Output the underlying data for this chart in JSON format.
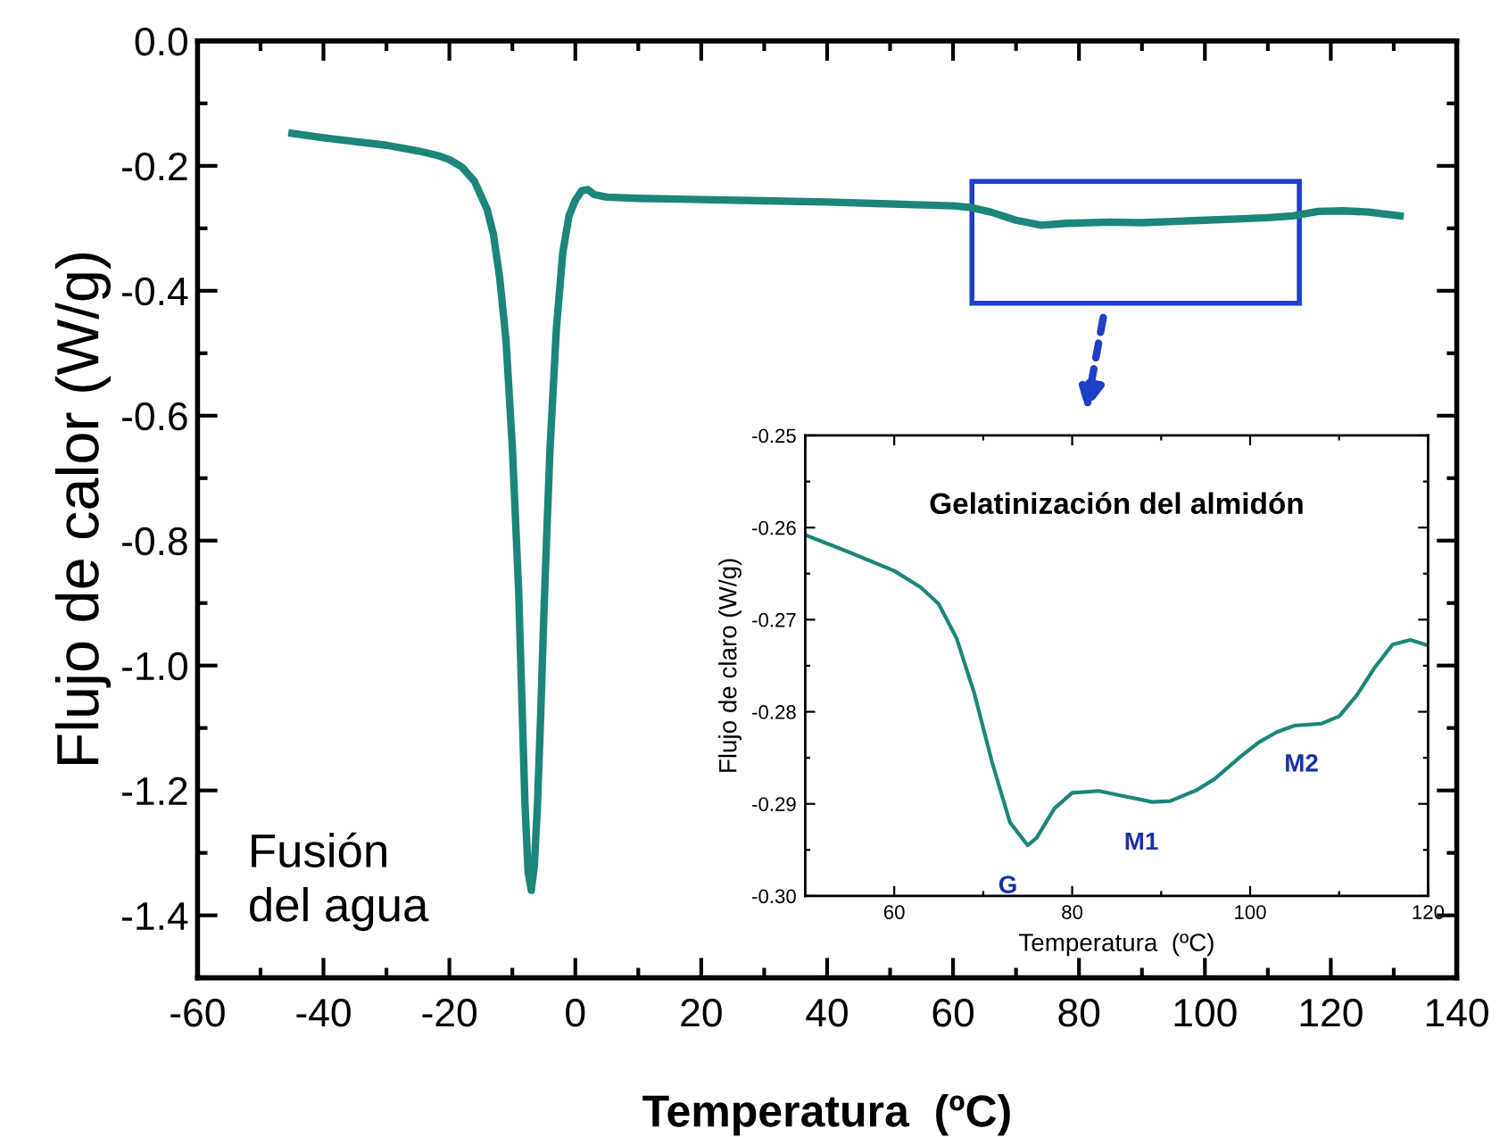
{
  "chart_data": [
    {
      "type": "line",
      "xlabel": "Temperatura  (ºC)",
      "ylabel": "Flujo de calor (W/g)",
      "xlim": [
        -60,
        140
      ],
      "ylim": [
        -1.5,
        0.0
      ],
      "xticks": [
        -60,
        -40,
        -20,
        0,
        20,
        40,
        60,
        80,
        100,
        120,
        140
      ],
      "yticks": [
        {
          "value": 0.0,
          "label": "0.0"
        },
        {
          "value": -0.2,
          "label": "-0.2"
        },
        {
          "value": -0.4,
          "label": "-0.4"
        },
        {
          "value": -0.6,
          "label": "-0.6"
        },
        {
          "value": -0.8,
          "label": "-0.8"
        },
        {
          "value": -1.0,
          "label": "-1.0"
        },
        {
          "value": -1.2,
          "label": "-1.2"
        },
        {
          "value": -1.4,
          "label": "-1.4"
        }
      ],
      "grid": false,
      "legend": false,
      "annotations": [
        "Fusión\ndel agua"
      ],
      "series": [
        {
          "color": "#1b8679",
          "x": [
            -45,
            -40,
            -35,
            -30,
            -25,
            -22,
            -20,
            -18,
            -16,
            -14,
            -13,
            -12,
            -11,
            -10,
            -9,
            -8.5,
            -8,
            -7.5,
            -7,
            -6.5,
            -6,
            -5.5,
            -5,
            -4.5,
            -4,
            -3,
            -2,
            -1,
            0,
            1,
            2,
            3,
            5,
            10,
            20,
            30,
            40,
            50,
            60,
            63,
            66,
            70,
            74,
            78,
            85,
            90,
            95,
            100,
            105,
            110,
            114,
            118,
            122,
            126,
            131
          ],
          "values": [
            -0.148,
            -0.155,
            -0.161,
            -0.167,
            -0.176,
            -0.183,
            -0.19,
            -0.202,
            -0.225,
            -0.27,
            -0.31,
            -0.38,
            -0.48,
            -0.65,
            -0.88,
            -1.05,
            -1.22,
            -1.33,
            -1.36,
            -1.32,
            -1.22,
            -1.08,
            -0.92,
            -0.78,
            -0.65,
            -0.46,
            -0.34,
            -0.28,
            -0.255,
            -0.24,
            -0.238,
            -0.246,
            -0.25,
            -0.252,
            -0.254,
            -0.256,
            -0.258,
            -0.261,
            -0.264,
            -0.267,
            -0.274,
            -0.287,
            -0.295,
            -0.292,
            -0.29,
            -0.291,
            -0.289,
            -0.287,
            -0.285,
            -0.283,
            -0.28,
            -0.273,
            -0.272,
            -0.274,
            -0.28
          ]
        }
      ]
    },
    {
      "type": "line",
      "title": "Gelatinización del almidón",
      "xlabel": "Temperatura  (ºC)",
      "ylabel": "Flujo de claro (W/g)",
      "xlim": [
        50,
        120
      ],
      "ylim": [
        -0.3,
        -0.25
      ],
      "xticks": [
        60,
        80,
        100,
        120
      ],
      "yticks": [
        {
          "value": -0.3,
          "label": "-0.30"
        },
        {
          "value": -0.29,
          "label": "-0.29"
        },
        {
          "value": -0.28,
          "label": "-0.28"
        },
        {
          "value": -0.27,
          "label": "-0.27"
        },
        {
          "value": -0.26,
          "label": "-0.26"
        },
        {
          "value": -0.25,
          "label": "-0.25"
        }
      ],
      "grid": false,
      "legend": false,
      "annotations": [
        {
          "text": "G",
          "x": 75,
          "y": -0.2945
        },
        {
          "text": "M1",
          "x": 90,
          "y": -0.2898
        },
        {
          "text": "M2",
          "x": 108,
          "y": -0.2813
        }
      ],
      "series": [
        {
          "color": "#1b8679",
          "x": [
            50,
            55,
            60,
            63,
            65,
            67,
            69,
            71,
            73,
            75,
            76,
            78,
            80,
            83,
            86,
            89,
            91,
            94,
            96,
            99,
            101,
            103,
            105,
            108,
            110,
            112,
            114,
            116,
            118,
            120
          ],
          "values": [
            -0.2608,
            -0.2627,
            -0.2647,
            -0.2665,
            -0.2683,
            -0.272,
            -0.278,
            -0.2855,
            -0.292,
            -0.2945,
            -0.2937,
            -0.2905,
            -0.2888,
            -0.2886,
            -0.2892,
            -0.2898,
            -0.2897,
            -0.2885,
            -0.2873,
            -0.2848,
            -0.2833,
            -0.2822,
            -0.2815,
            -0.2813,
            -0.2805,
            -0.2782,
            -0.2752,
            -0.2727,
            -0.2722,
            -0.2728
          ]
        }
      ]
    }
  ]
}
